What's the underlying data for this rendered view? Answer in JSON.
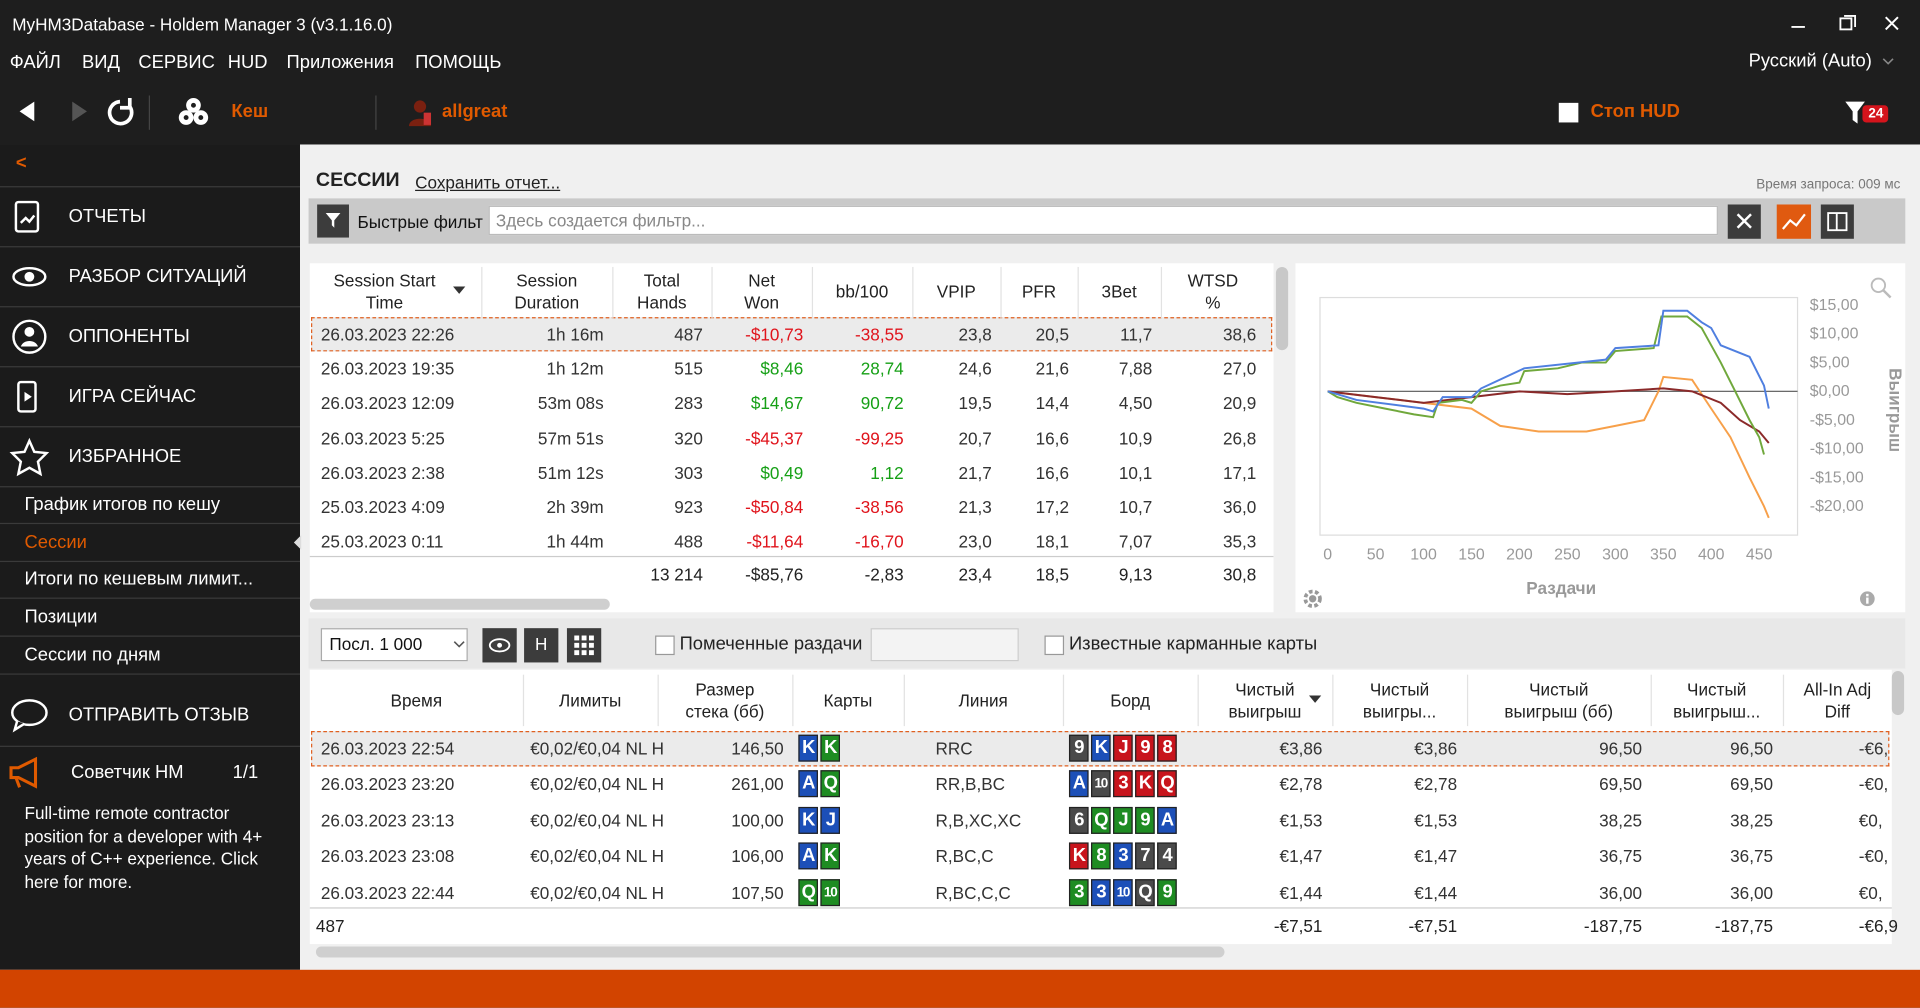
{
  "window": {
    "title": "MyHM3Database - Holdem Manager 3 (v3.1.16.0)"
  },
  "menu": [
    "ФАЙЛ",
    "ВИД",
    "СЕРВИС",
    "HUD",
    "Приложения",
    "ПОМОЩЬ"
  ],
  "language": "Русский (Auto)",
  "toolbar": {
    "mode": "Кеш",
    "player": "allgreat",
    "hud": "Стоп HUD",
    "filter_count": "24"
  },
  "sidebar": {
    "back": "<",
    "sections": [
      "ОТЧЕТЫ",
      "РАЗБОР СИТУАЦИЙ",
      "ОППОНЕНТЫ",
      "ИГРА СЕЙЧАС",
      "ИЗБРАННОЕ"
    ],
    "favorites": [
      "График итогов по кешу",
      "Сессии",
      "Итоги по кешевым лимит...",
      "Позиции",
      "Сессии по дням"
    ],
    "selected_favorite": 1,
    "feedback": "ОТПРАВИТЬ ОТЗЫВ",
    "advisor": "Советчик HM",
    "advisor_count": "1/1",
    "ad": "Full-time remote contractor position for a developer with 4+ years of C++ experience. Click here for more."
  },
  "report": {
    "title": "СЕССИИ",
    "save": "Сохранить отчет...",
    "query_time": "Время запроса: 009 мс",
    "quick_filter": "Быстрые фильт",
    "filter_placeholder": "Здесь создается фильтр..."
  },
  "sessions": {
    "columns": [
      "Session Start\nTime",
      "Session\nDuration",
      "Total\nHands",
      "Net\nWon",
      "bb/100",
      "VPIP",
      "PFR",
      "3Bet",
      "WTSD\n%"
    ],
    "rows": [
      [
        "26.03.2023 22:26",
        "1h 16m",
        "487",
        "-$10,73",
        "-38,55",
        "23,8",
        "20,5",
        "11,7",
        "38,6"
      ],
      [
        "26.03.2023 19:35",
        "1h 12m",
        "515",
        "$8,46",
        "28,74",
        "24,6",
        "21,6",
        "7,88",
        "27,0"
      ],
      [
        "26.03.2023 12:09",
        "53m 08s",
        "283",
        "$14,67",
        "90,72",
        "19,5",
        "14,4",
        "4,50",
        "20,9"
      ],
      [
        "26.03.2023 5:25",
        "57m 51s",
        "320",
        "-$45,37",
        "-99,25",
        "20,7",
        "16,6",
        "10,9",
        "26,8"
      ],
      [
        "26.03.2023 2:38",
        "51m 12s",
        "303",
        "$0,49",
        "1,12",
        "21,7",
        "16,6",
        "10,1",
        "17,1"
      ],
      [
        "25.03.2023 4:09",
        "2h 39m",
        "923",
        "-$50,84",
        "-38,56",
        "21,3",
        "17,2",
        "10,7",
        "36,0"
      ],
      [
        "25.03.2023 0:11",
        "1h 44m",
        "488",
        "-$11,64",
        "-16,70",
        "23,0",
        "18,1",
        "7,07",
        "35,3"
      ]
    ],
    "totals": [
      "13 214",
      "-$85,76",
      "-2,83",
      "23,4",
      "18,5",
      "9,13",
      "30,8"
    ]
  },
  "chart": {
    "type": "line",
    "xlabel": "Раздачи",
    "ylabel": "Выигрыш",
    "xlim": [
      -8,
      490
    ],
    "ylim": [
      -25,
      16.3
    ],
    "xticks": [
      0,
      50,
      100,
      150,
      200,
      250,
      300,
      350,
      400,
      450
    ],
    "yticks": [
      {
        "value": 15,
        "label": "$15,00"
      },
      {
        "value": 10,
        "label": "$10,00"
      },
      {
        "value": 5,
        "label": "$5,00"
      },
      {
        "value": 0,
        "label": "$0,00"
      },
      {
        "value": -5,
        "label": "-$5,00"
      },
      {
        "value": -10,
        "label": "-$10,00"
      },
      {
        "value": -15,
        "label": "-$15,00"
      },
      {
        "value": -20,
        "label": "-$20,00"
      }
    ],
    "series": [
      {
        "color": "#f7a04a",
        "x": [
          0,
          50,
          100,
          150,
          180,
          220,
          270,
          300,
          330,
          345,
          350,
          380,
          400,
          420,
          440,
          455,
          460
        ],
        "values": [
          0,
          -1,
          -2,
          -3,
          -6,
          -7,
          -7,
          -6,
          -5,
          0,
          2.5,
          2,
          -3,
          -8,
          -15,
          -20,
          -22
        ]
      },
      {
        "color": "#8b2a2a",
        "x": [
          0,
          50,
          100,
          150,
          200,
          250,
          300,
          350,
          380,
          410,
          430,
          450,
          460
        ],
        "values": [
          0,
          -1,
          -2,
          -1,
          0,
          -0.5,
          0,
          0.5,
          0,
          -2,
          -5,
          -7,
          -9
        ]
      },
      {
        "color": "#70a83c",
        "x": [
          0,
          10,
          30,
          60,
          90,
          110,
          115,
          140,
          150,
          160,
          180,
          200,
          205,
          240,
          265,
          290,
          300,
          340,
          348,
          375,
          390,
          400,
          410,
          425,
          440,
          450,
          455
        ],
        "values": [
          0,
          -1,
          -2,
          -3,
          -4,
          -4.5,
          -2,
          -1.5,
          -2,
          0,
          1,
          1.5,
          3.5,
          4,
          5,
          5,
          7,
          7.5,
          13,
          13,
          11,
          8,
          5,
          0,
          -5,
          -8,
          -11
        ]
      },
      {
        "color": "#4f7fe0",
        "x": [
          0,
          30,
          100,
          110,
          120,
          150,
          160,
          205,
          290,
          300,
          345,
          350,
          375,
          390,
          400,
          410,
          440,
          455,
          460
        ],
        "values": [
          0,
          -1.5,
          -3,
          -3.5,
          -1,
          -1,
          0.5,
          4,
          5.5,
          7.5,
          8,
          14,
          14,
          12,
          11,
          8,
          6,
          1,
          -3
        ]
      }
    ]
  },
  "hands_toolbar": {
    "range": "Посл. 1 000",
    "h": "H",
    "marked": "Помеченные раздачи",
    "known": "Известные карманные карты"
  },
  "hands": {
    "columns": [
      "Время",
      "Лимиты",
      "Размер\nстека (бб)",
      "Карты",
      "Линия",
      "Борд",
      "Чистый\nвыигрыш",
      "Чистый\nвыигры...",
      "Чистый\nвыигрыш (бб)",
      "Чистый\nвыигрыш...",
      "All-In Adj\nDiff"
    ],
    "rows": [
      [
        "26.03.2023 22:54",
        "€0,02/€0,04 NL H",
        "146,50",
        [
          [
            "K",
            "d"
          ],
          [
            "K",
            "c"
          ]
        ],
        "RRC",
        [
          [
            "9",
            "s"
          ],
          [
            "K",
            "d"
          ],
          [
            "J",
            "h"
          ],
          [
            "9",
            "h"
          ],
          [
            "8",
            "h"
          ]
        ],
        "€3,86",
        "€3,86",
        "96,50",
        "96,50",
        "-€6,"
      ],
      [
        "26.03.2023 23:20",
        "€0,02/€0,04 NL H",
        "261,00",
        [
          [
            "A",
            "d"
          ],
          [
            "Q",
            "c"
          ]
        ],
        "RR,B,BC",
        [
          [
            "A",
            "d"
          ],
          [
            "10",
            "s"
          ],
          [
            "3",
            "h"
          ],
          [
            "K",
            "h"
          ],
          [
            "Q",
            "h"
          ]
        ],
        "€2,78",
        "€2,78",
        "69,50",
        "69,50",
        "-€0,"
      ],
      [
        "26.03.2023 23:13",
        "€0,02/€0,04 NL H",
        "100,00",
        [
          [
            "K",
            "d"
          ],
          [
            "J",
            "d"
          ]
        ],
        "R,B,XC,XC",
        [
          [
            "6",
            "s"
          ],
          [
            "Q",
            "c"
          ],
          [
            "J",
            "c"
          ],
          [
            "9",
            "c"
          ],
          [
            "A",
            "d"
          ]
        ],
        "€1,53",
        "€1,53",
        "38,25",
        "38,25",
        "€0,"
      ],
      [
        "26.03.2023 23:08",
        "€0,02/€0,04 NL H",
        "106,00",
        [
          [
            "A",
            "d"
          ],
          [
            "K",
            "c"
          ]
        ],
        "R,BC,C",
        [
          [
            "K",
            "h"
          ],
          [
            "8",
            "c"
          ],
          [
            "3",
            "d"
          ],
          [
            "7",
            "s"
          ],
          [
            "4",
            "s"
          ]
        ],
        "€1,47",
        "€1,47",
        "36,75",
        "36,75",
        "-€0,"
      ],
      [
        "26.03.2023 22:44",
        "€0,02/€0,04 NL H",
        "107,50",
        [
          [
            "Q",
            "c"
          ],
          [
            "10",
            "c"
          ]
        ],
        "R,BC,C,C",
        [
          [
            "3",
            "c"
          ],
          [
            "3",
            "d"
          ],
          [
            "10",
            "d"
          ],
          [
            "Q",
            "s"
          ],
          [
            "9",
            "c"
          ]
        ],
        "€1,44",
        "€1,44",
        "36,00",
        "36,00",
        "€0,"
      ]
    ],
    "totals": [
      "487",
      "-€7,51",
      "-€7,51",
      "-187,75",
      "-187,75",
      "-€6,9"
    ]
  }
}
